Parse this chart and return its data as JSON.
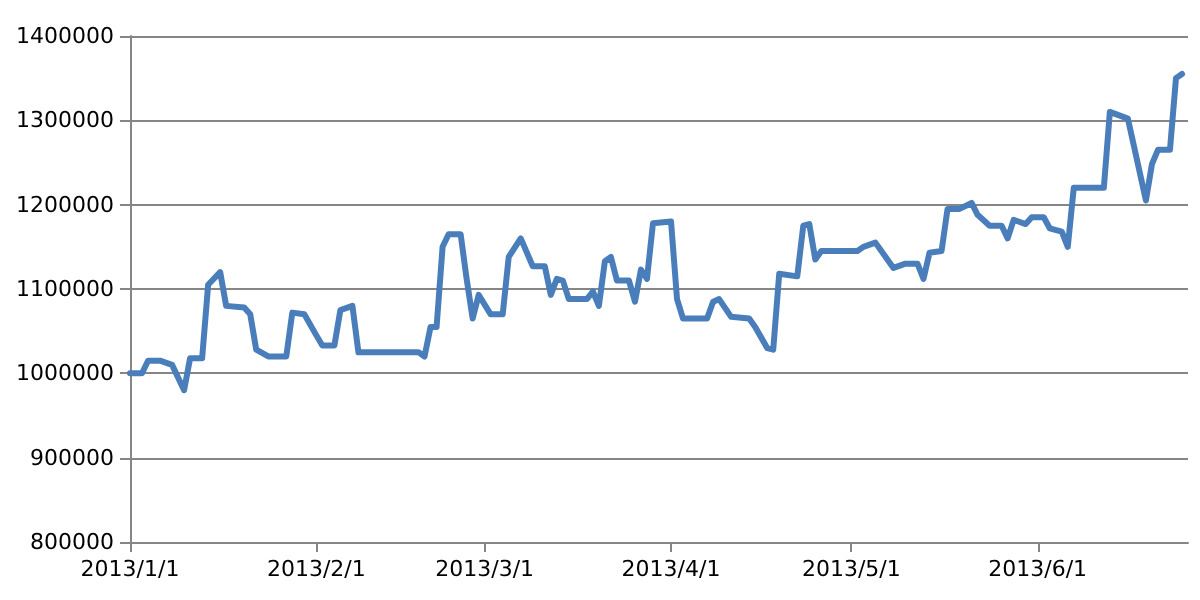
{
  "chart_data": {
    "type": "line",
    "x": [
      "2013-01-01",
      "2013-01-03",
      "2013-01-04",
      "2013-01-06",
      "2013-01-08",
      "2013-01-10",
      "2013-01-11",
      "2013-01-13",
      "2013-01-14",
      "2013-01-16",
      "2013-01-17",
      "2013-01-20",
      "2013-01-21",
      "2013-01-22",
      "2013-01-24",
      "2013-01-27",
      "2013-01-28",
      "2013-01-30",
      "2013-02-01",
      "2013-02-02",
      "2013-02-04",
      "2013-02-05",
      "2013-02-07",
      "2013-02-08",
      "2013-02-18",
      "2013-02-19",
      "2013-02-20",
      "2013-02-21",
      "2013-02-22",
      "2013-02-23",
      "2013-02-25",
      "2013-02-26",
      "2013-02-27",
      "2013-02-28",
      "2013-03-02",
      "2013-03-04",
      "2013-03-05",
      "2013-03-07",
      "2013-03-09",
      "2013-03-11",
      "2013-03-12",
      "2013-03-13",
      "2013-03-14",
      "2013-03-15",
      "2013-03-18",
      "2013-03-19",
      "2013-03-20",
      "2013-03-21",
      "2013-03-22",
      "2013-03-23",
      "2013-03-25",
      "2013-03-26",
      "2013-03-27",
      "2013-03-28",
      "2013-03-29",
      "2013-04-01",
      "2013-04-02",
      "2013-04-03",
      "2013-04-07",
      "2013-04-08",
      "2013-04-09",
      "2013-04-11",
      "2013-04-14",
      "2013-04-15",
      "2013-04-17",
      "2013-04-18",
      "2013-04-19",
      "2013-04-22",
      "2013-04-23",
      "2013-04-24",
      "2013-04-25",
      "2013-04-26",
      "2013-05-02",
      "2013-05-03",
      "2013-05-05",
      "2013-05-08",
      "2013-05-10",
      "2013-05-12",
      "2013-05-13",
      "2013-05-14",
      "2013-05-16",
      "2013-05-17",
      "2013-05-19",
      "2013-05-21",
      "2013-05-22",
      "2013-05-24",
      "2013-05-26",
      "2013-05-27",
      "2013-05-28",
      "2013-05-30",
      "2013-05-31",
      "2013-06-02",
      "2013-06-03",
      "2013-06-05",
      "2013-06-06",
      "2013-06-07",
      "2013-06-12",
      "2013-06-13",
      "2013-06-16",
      "2013-06-19",
      "2013-06-20",
      "2013-06-21",
      "2013-06-23",
      "2013-06-24",
      "2013-06-25"
    ],
    "series": [
      {
        "color": "#4a7ebb",
        "values": [
          1000000,
          1000000,
          1015000,
          1015000,
          1010000,
          980000,
          1018000,
          1018000,
          1105000,
          1120000,
          1080000,
          1078000,
          1070000,
          1028000,
          1020000,
          1020000,
          1072000,
          1070000,
          1045000,
          1033000,
          1033000,
          1075000,
          1080000,
          1025000,
          1025000,
          1020000,
          1055000,
          1055000,
          1150000,
          1165000,
          1165000,
          1112000,
          1065000,
          1093000,
          1070000,
          1070000,
          1138000,
          1160000,
          1127000,
          1127000,
          1093000,
          1112000,
          1110000,
          1088000,
          1088000,
          1097000,
          1080000,
          1133000,
          1138000,
          1110000,
          1110000,
          1085000,
          1123000,
          1112000,
          1178000,
          1180000,
          1088000,
          1065000,
          1065000,
          1085000,
          1088000,
          1067000,
          1065000,
          1055000,
          1030000,
          1028000,
          1118000,
          1115000,
          1175000,
          1177000,
          1135000,
          1145000,
          1145000,
          1150000,
          1155000,
          1125000,
          1130000,
          1130000,
          1112000,
          1143000,
          1145000,
          1195000,
          1195000,
          1202000,
          1188000,
          1175000,
          1175000,
          1160000,
          1182000,
          1177000,
          1185000,
          1185000,
          1172000,
          1168000,
          1150000,
          1220000,
          1220000,
          1310000,
          1302000,
          1205000,
          1248000,
          1265000,
          1265000,
          1350000,
          1355000
        ]
      }
    ],
    "xlim": [
      "2013-01-01",
      "2013-06-26"
    ],
    "xticks": [
      {
        "value": "2013-01-01",
        "label": "2013/1/1"
      },
      {
        "value": "2013-02-01",
        "label": "2013/2/1"
      },
      {
        "value": "2013-03-01",
        "label": "2013/3/1"
      },
      {
        "value": "2013-04-01",
        "label": "2013/4/1"
      },
      {
        "value": "2013-05-01",
        "label": "2013/5/1"
      },
      {
        "value": "2013-06-01",
        "label": "2013/6/1"
      }
    ],
    "ylim": [
      800000,
      1400000
    ],
    "yticks": [
      800000,
      900000,
      1000000,
      1100000,
      1200000,
      1300000,
      1400000
    ],
    "grid": "y",
    "marker": "none",
    "line_style": "solid"
  }
}
